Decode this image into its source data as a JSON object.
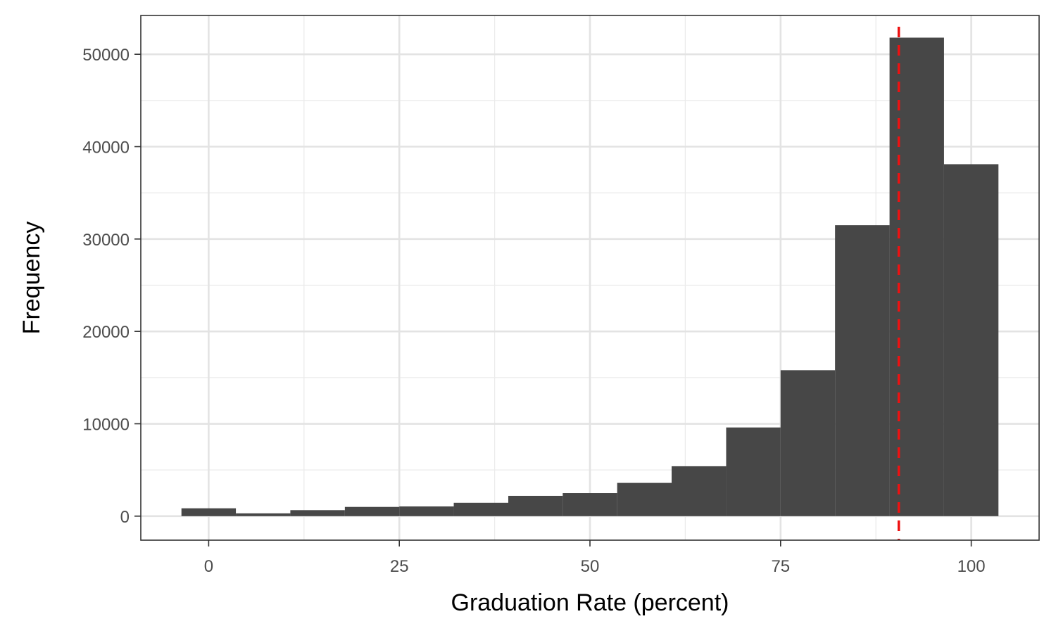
{
  "chart_data": {
    "type": "bar",
    "title": "",
    "xlabel": "Graduation Rate (percent)",
    "ylabel": "Frequency",
    "xlim": [
      -8.9,
      108.9
    ],
    "ylim": [
      -2600,
      54200
    ],
    "x_ticks": [
      0,
      25,
      50,
      75,
      100
    ],
    "x_tick_labels": [
      "0",
      "25",
      "50",
      "75",
      "100"
    ],
    "y_ticks": [
      0,
      10000,
      20000,
      30000,
      40000,
      50000
    ],
    "y_tick_labels": [
      "0",
      "10000",
      "20000",
      "30000",
      "40000",
      "50000"
    ],
    "grid": true,
    "bin_width": 7.14,
    "bins": [
      {
        "x0": -3.57,
        "x1": 3.57,
        "value": 850
      },
      {
        "x0": 3.57,
        "x1": 10.71,
        "value": 300
      },
      {
        "x0": 10.71,
        "x1": 17.86,
        "value": 650
      },
      {
        "x0": 17.86,
        "x1": 25.0,
        "value": 1000
      },
      {
        "x0": 25.0,
        "x1": 32.14,
        "value": 1050
      },
      {
        "x0": 32.14,
        "x1": 39.29,
        "value": 1450
      },
      {
        "x0": 39.29,
        "x1": 46.43,
        "value": 2200
      },
      {
        "x0": 46.43,
        "x1": 53.57,
        "value": 2500
      },
      {
        "x0": 53.57,
        "x1": 60.71,
        "value": 3600
      },
      {
        "x0": 60.71,
        "x1": 67.86,
        "value": 5400
      },
      {
        "x0": 67.86,
        "x1": 75.0,
        "value": 9600
      },
      {
        "x0": 75.0,
        "x1": 82.14,
        "value": 15800
      },
      {
        "x0": 82.14,
        "x1": 89.29,
        "value": 31500
      },
      {
        "x0": 89.29,
        "x1": 96.43,
        "value": 51800
      },
      {
        "x0": 96.43,
        "x1": 103.57,
        "value": 38100
      }
    ],
    "reference_line": {
      "x": 90.5,
      "color": "#ee1111",
      "style": "dashed"
    },
    "bar_color": "#474747"
  }
}
